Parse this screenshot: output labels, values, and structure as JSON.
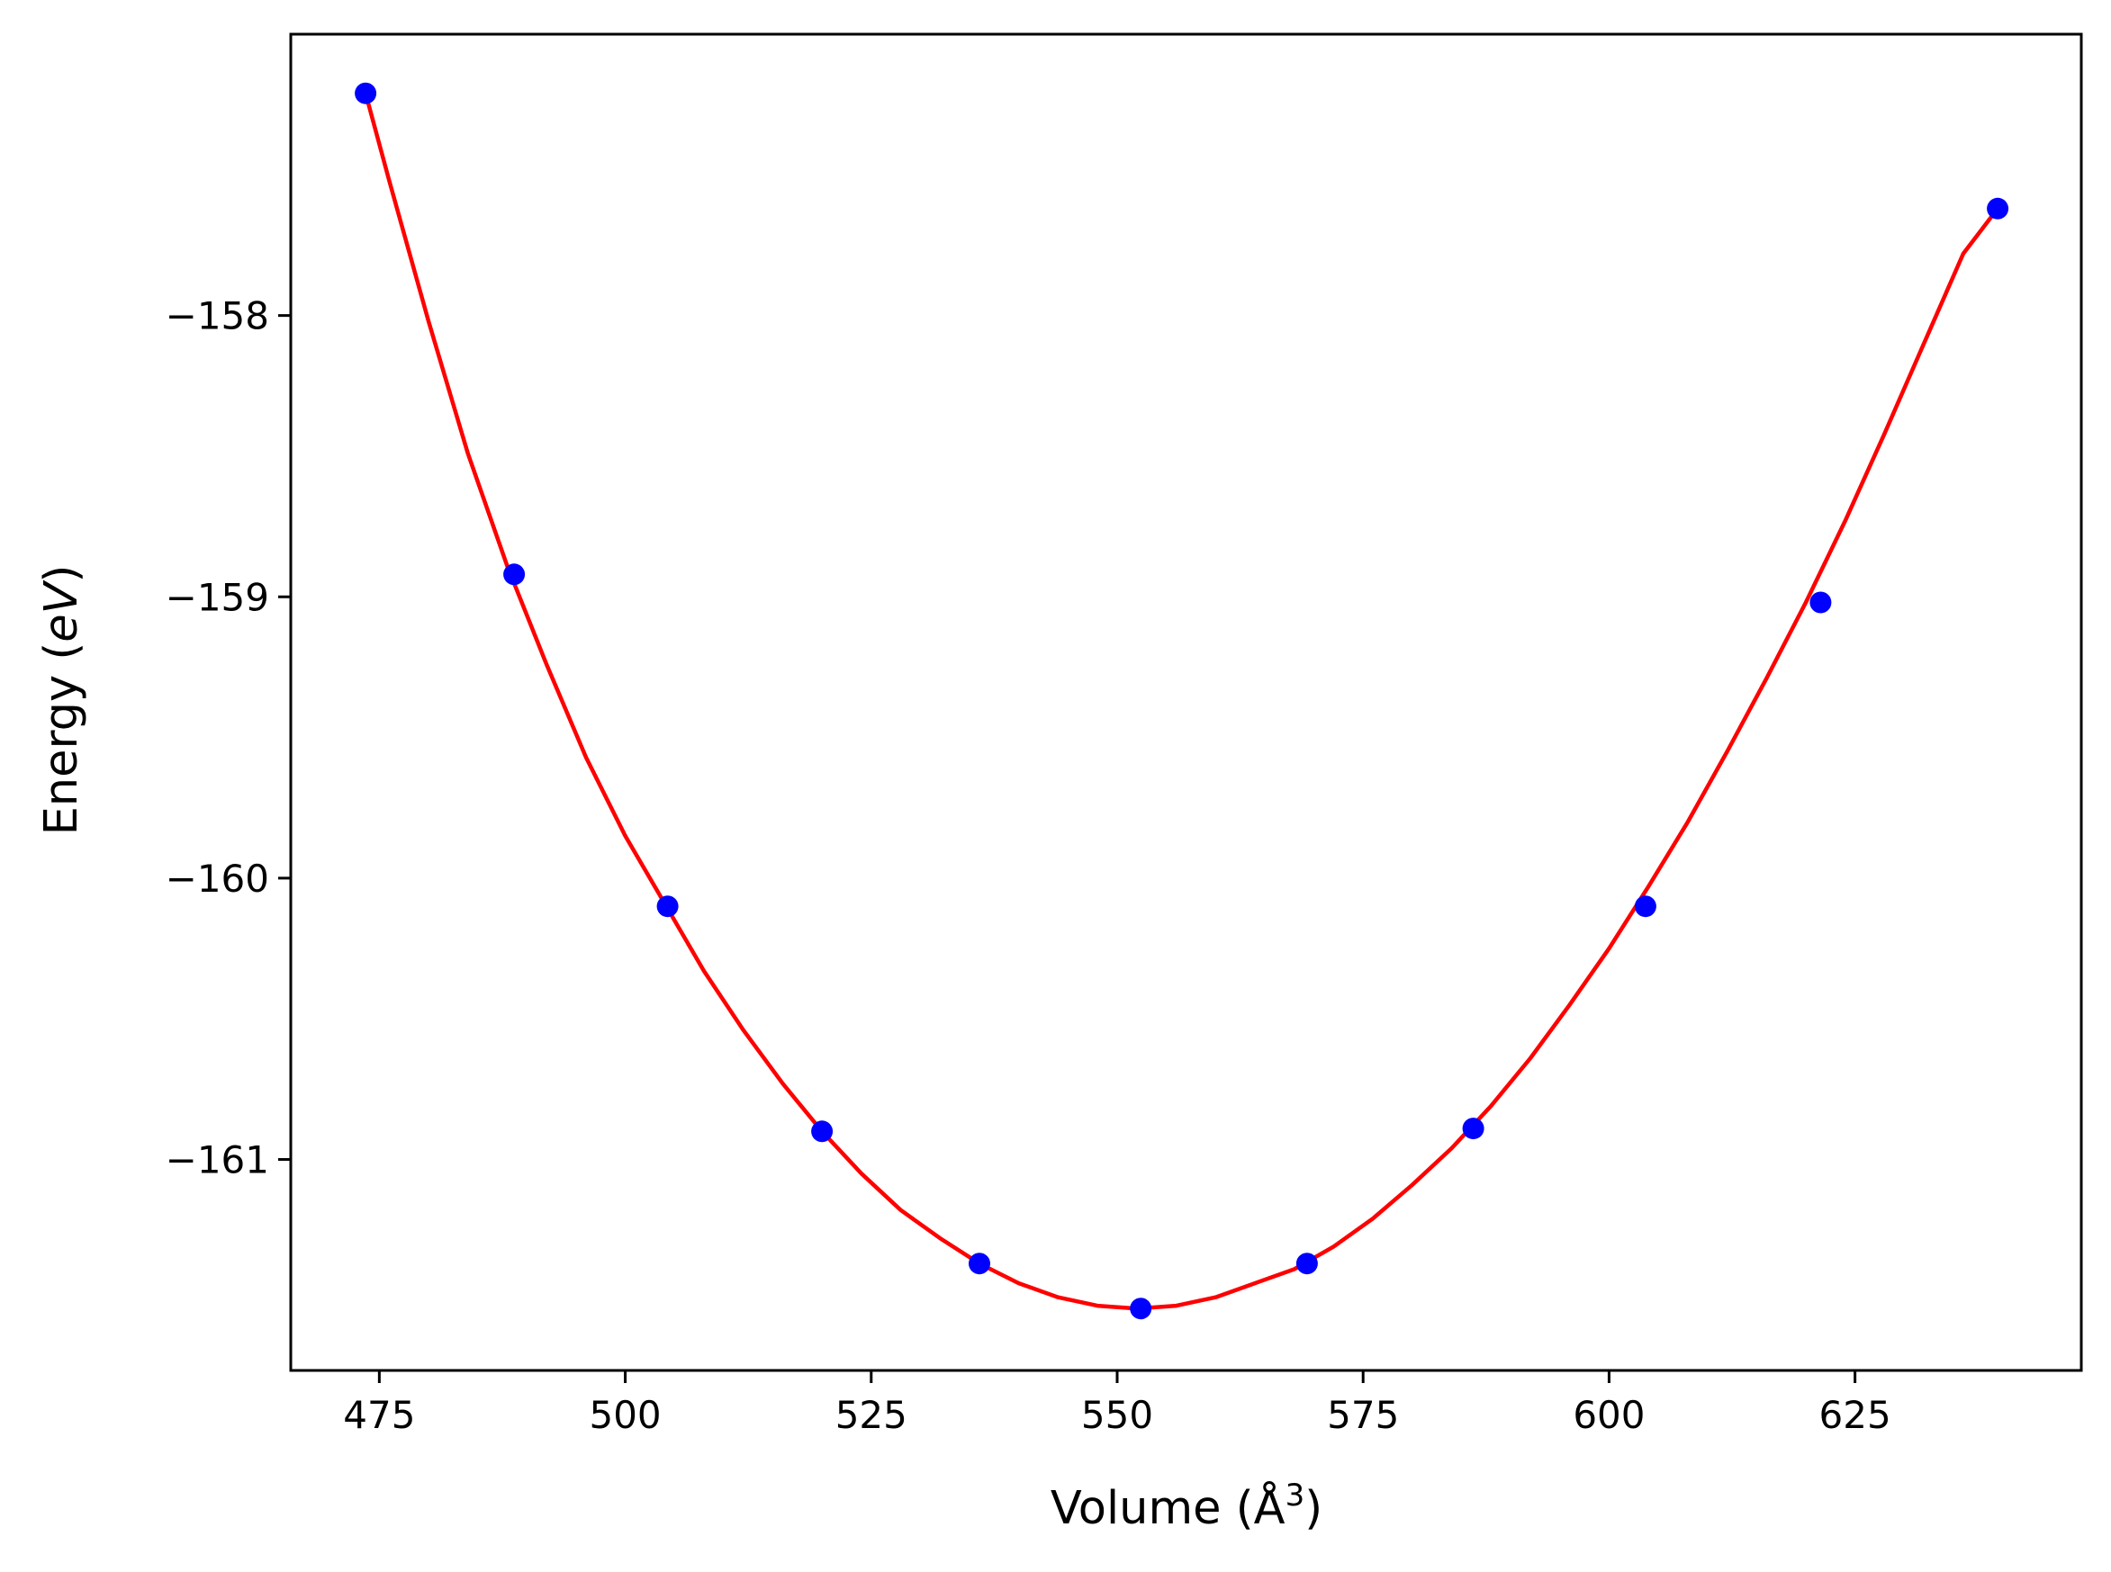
{
  "chart_data": {
    "type": "scatter",
    "xlabel": "Volume (Å",
    "xlabel_sup": "3",
    "xlabel_close": ")",
    "ylabel_main": "Energy (",
    "ylabel_italic": "eV",
    "ylabel_close": ")",
    "xlim": [
      466,
      648
    ],
    "ylim": [
      -161.75,
      -157.0
    ],
    "x_ticks": [
      475,
      500,
      525,
      550,
      575,
      600,
      625
    ],
    "x_tick_labels": [
      "475",
      "500",
      "525",
      "550",
      "575",
      "600",
      "625"
    ],
    "y_ticks": [
      -158,
      -159,
      -160,
      -161
    ],
    "y_tick_labels": [
      "−158",
      "−159",
      "−160",
      "−161"
    ],
    "grid": false,
    "series": [
      {
        "kind": "points",
        "color": "#0000ff",
        "x": [
          473.6,
          488.7,
          504.3,
          520.0,
          536.0,
          552.4,
          569.3,
          586.2,
          603.7,
          621.5,
          639.5
        ],
        "y": [
          -157.21,
          -158.92,
          -160.1,
          -160.9,
          -161.37,
          -161.53,
          -161.37,
          -160.89,
          -160.1,
          -159.02,
          -157.62
        ]
      },
      {
        "kind": "fit",
        "color": "#ff0000",
        "x": [
          473.6,
          476,
          480,
          484,
          488,
          492,
          496,
          500,
          504,
          508,
          512,
          516,
          520,
          524,
          528,
          532,
          536,
          540,
          544,
          548,
          552,
          556,
          560,
          564,
          568,
          572,
          576,
          580,
          584,
          588,
          592,
          596,
          600,
          604,
          608,
          612,
          616,
          620,
          624,
          628,
          632,
          636,
          639.5
        ],
        "y": [
          -157.21,
          -157.52,
          -158.02,
          -158.49,
          -158.89,
          -159.24,
          -159.57,
          -159.85,
          -160.09,
          -160.33,
          -160.54,
          -160.73,
          -160.9,
          -161.05,
          -161.18,
          -161.28,
          -161.37,
          -161.44,
          -161.49,
          -161.52,
          -161.53,
          -161.52,
          -161.49,
          -161.44,
          -161.39,
          -161.31,
          -161.21,
          -161.09,
          -160.96,
          -160.81,
          -160.64,
          -160.45,
          -160.25,
          -160.03,
          -159.8,
          -159.55,
          -159.29,
          -159.02,
          -158.73,
          -158.42,
          -158.1,
          -157.78,
          -157.62
        ]
      }
    ],
    "colors": {
      "points": "#0000ff",
      "fit": "#ff0000",
      "axes": "#000000"
    }
  }
}
